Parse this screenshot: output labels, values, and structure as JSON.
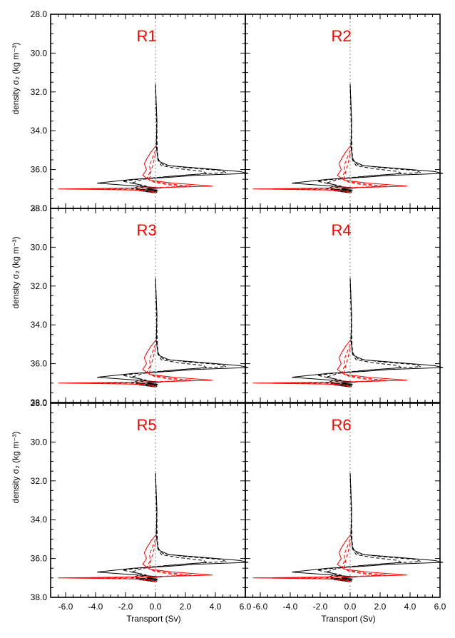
{
  "chart_data": {
    "type": "line",
    "layout": "3x2 panel grid",
    "panels": [
      "R1",
      "R2",
      "R3",
      "R4",
      "R5",
      "R6"
    ],
    "panel_label_color": "#ff0000",
    "xlabel": "Transport (Sv)",
    "ylabel": "density σ₂ (kg m⁻³)",
    "xlim": [
      -7,
      6
    ],
    "ylim": [
      38.0,
      28.0
    ],
    "y_axis_inverted": true,
    "xticks": [
      -6,
      -4,
      -2,
      0,
      2,
      4,
      6
    ],
    "xtick_labels": [
      "-6.0",
      "-4.0",
      "-2.0",
      "0.0",
      "2.0",
      "4.0",
      "6.0"
    ],
    "yticks": [
      28,
      30,
      32,
      34,
      36,
      38
    ],
    "ytick_labels": [
      "28.0",
      "30.0",
      "32.0",
      "34.0",
      "36.0",
      "38.0"
    ],
    "zero_line": {
      "x": 0,
      "style": "dotted",
      "color": "#888888"
    },
    "colors": {
      "black_series": "#000000",
      "red_series": "#ff0000"
    },
    "series": [
      {
        "color": "#000000",
        "dash": "solid",
        "points": [
          [
            0.0,
            31.6
          ],
          [
            0.05,
            32.5
          ],
          [
            0.1,
            33.5
          ],
          [
            0.05,
            34.8
          ],
          [
            0.15,
            35.4
          ],
          [
            0.3,
            35.6
          ],
          [
            0.9,
            35.8
          ],
          [
            2.5,
            35.9
          ],
          [
            5.6,
            36.1
          ],
          [
            6.2,
            36.2
          ],
          [
            2.6,
            36.3
          ],
          [
            0.9,
            36.4
          ],
          [
            -1.5,
            36.5
          ],
          [
            -3.9,
            36.7
          ],
          [
            -1.2,
            36.85
          ],
          [
            0.4,
            36.95
          ],
          [
            -0.6,
            37.0
          ],
          [
            0.1,
            37.05
          ],
          [
            -1.1,
            37.1
          ],
          [
            0.1,
            37.15
          ],
          [
            0.05,
            37.2
          ]
        ]
      },
      {
        "color": "#000000",
        "dash": "dashed",
        "points": [
          [
            0.0,
            31.6
          ],
          [
            0.05,
            32.6
          ],
          [
            0.1,
            34.0
          ],
          [
            0.1,
            35.0
          ],
          [
            0.2,
            35.5
          ],
          [
            0.5,
            35.75
          ],
          [
            2.0,
            35.9
          ],
          [
            4.4,
            36.05
          ],
          [
            4.7,
            36.15
          ],
          [
            1.6,
            36.3
          ],
          [
            -0.5,
            36.45
          ],
          [
            -2.2,
            36.6
          ],
          [
            -0.9,
            36.8
          ],
          [
            -1.6,
            37.0
          ],
          [
            0.2,
            37.05
          ],
          [
            -0.8,
            37.12
          ],
          [
            0.0,
            37.2
          ]
        ]
      },
      {
        "color": "#000000",
        "dash": "dashed",
        "points": [
          [
            0.0,
            31.6
          ],
          [
            0.05,
            33.0
          ],
          [
            0.1,
            34.5
          ],
          [
            0.15,
            35.5
          ],
          [
            0.4,
            35.8
          ],
          [
            1.5,
            35.95
          ],
          [
            3.2,
            36.1
          ],
          [
            3.4,
            36.2
          ],
          [
            1.0,
            36.35
          ],
          [
            -0.8,
            36.5
          ],
          [
            -1.6,
            36.7
          ],
          [
            -0.6,
            36.85
          ],
          [
            -1.3,
            37.0
          ],
          [
            0.1,
            37.1
          ],
          [
            -0.5,
            37.15
          ],
          [
            0.0,
            37.2
          ]
        ]
      },
      {
        "color": "#ff0000",
        "dash": "solid",
        "points": [
          [
            0.0,
            34.8
          ],
          [
            -0.3,
            35.1
          ],
          [
            -0.55,
            35.4
          ],
          [
            -0.75,
            35.7
          ],
          [
            -0.6,
            36.0
          ],
          [
            -0.85,
            36.3
          ],
          [
            -0.4,
            36.55
          ],
          [
            1.2,
            36.7
          ],
          [
            3.8,
            36.85
          ],
          [
            0.5,
            36.93
          ],
          [
            -6.5,
            37.0
          ],
          [
            -1.5,
            37.05
          ],
          [
            -0.4,
            37.1
          ],
          [
            0.0,
            37.2
          ]
        ]
      },
      {
        "color": "#ff0000",
        "dash": "dashed",
        "points": [
          [
            0.0,
            35.0
          ],
          [
            -0.2,
            35.4
          ],
          [
            -0.4,
            35.8
          ],
          [
            -0.35,
            36.1
          ],
          [
            -0.55,
            36.4
          ],
          [
            -0.2,
            36.6
          ],
          [
            1.0,
            36.75
          ],
          [
            2.4,
            36.85
          ],
          [
            0.2,
            36.93
          ],
          [
            -4.8,
            37.0
          ],
          [
            -1.0,
            37.05
          ],
          [
            -0.2,
            37.12
          ],
          [
            0.0,
            37.2
          ]
        ]
      },
      {
        "color": "#ff0000",
        "dash": "dashed",
        "points": [
          [
            0.0,
            35.2
          ],
          [
            -0.15,
            35.7
          ],
          [
            -0.3,
            36.1
          ],
          [
            -0.4,
            36.5
          ],
          [
            -0.1,
            36.65
          ],
          [
            0.8,
            36.78
          ],
          [
            1.8,
            36.87
          ],
          [
            0.1,
            36.94
          ],
          [
            -3.3,
            37.0
          ],
          [
            -0.7,
            37.07
          ],
          [
            0.0,
            37.2
          ]
        ]
      }
    ]
  }
}
